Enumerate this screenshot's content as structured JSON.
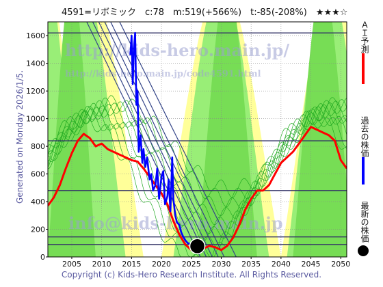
{
  "title": "4591=リボミック　c:78　m:519(+566%)　t:-85(-208%)　★★★☆",
  "side_label": "Generated on Monday 2026/1/5.",
  "copyright": "Copyright (c) Kids-Hero Research Institute. All Rights Reserved.",
  "watermarks": {
    "url": "http://kids-hero.main.jp/",
    "url2": "http://kids-hero.main.jp/code4591.html",
    "mail": "info@kids-hero.main.jp"
  },
  "legend": [
    {
      "label": "ＡＩ予測",
      "color": "#ff0000",
      "kind": "line"
    },
    {
      "label": "過去の株価",
      "color": "#0000ff",
      "kind": "line"
    },
    {
      "label": "最新の株価",
      "color": "#000000",
      "kind": "dot"
    }
  ],
  "chart_data": {
    "type": "line",
    "title": "4591=リボミック　c:78　m:519(+566%)　t:-85(-208%)　★★★☆",
    "xlim": [
      2001,
      2051
    ],
    "ylim": [
      0,
      1700
    ],
    "x_ticks": [
      2005,
      2010,
      2015,
      2020,
      2025,
      2030,
      2035,
      2040,
      2045,
      2050
    ],
    "y_ticks": [
      0,
      200,
      400,
      600,
      800,
      1000,
      1200,
      1400,
      1600
    ],
    "grid": true,
    "latest_price": {
      "x": 2026.0,
      "y": 78
    },
    "horizontal_lines": [
      1620,
      840,
      480,
      145,
      90
    ],
    "series": [
      {
        "name": "ＡＩ予測",
        "color": "#ff0000",
        "x": [
          2001,
          2002,
          2003,
          2004,
          2005,
          2006,
          2007,
          2008,
          2009,
          2010,
          2011,
          2012,
          2013,
          2014,
          2015,
          2016,
          2017,
          2018,
          2019,
          2020,
          2021,
          2022,
          2023,
          2024,
          2025,
          2026,
          2027,
          2028,
          2029,
          2030,
          2031,
          2032,
          2033,
          2034,
          2035,
          2036,
          2037,
          2038,
          2039,
          2040,
          2041,
          2042,
          2043,
          2044,
          2045,
          2046,
          2047,
          2048,
          2049,
          2050,
          2051
        ],
        "y": [
          370,
          430,
          520,
          640,
          750,
          840,
          890,
          860,
          800,
          820,
          780,
          760,
          740,
          720,
          700,
          690,
          640,
          580,
          520,
          460,
          380,
          260,
          160,
          90,
          50,
          40,
          60,
          80,
          70,
          50,
          80,
          140,
          230,
          340,
          420,
          480,
          480,
          520,
          600,
          680,
          720,
          760,
          820,
          880,
          940,
          920,
          900,
          880,
          840,
          700,
          640
        ]
      },
      {
        "name": "過去の株価",
        "color": "#0000ff",
        "x": [
          2014.8,
          2015.0,
          2015.2,
          2015.4,
          2015.6,
          2015.8,
          2016.0,
          2016.2,
          2016.5,
          2016.8,
          2017.0,
          2017.3,
          2017.6,
          2018.0,
          2018.3,
          2018.6,
          2019.0,
          2019.3,
          2019.6,
          2020.0,
          2020.3,
          2020.6,
          2021.0,
          2021.2,
          2021.5,
          2021.8,
          2022.0,
          2022.3,
          2022.6,
          2023.0,
          2023.3,
          2023.6,
          2024.0,
          2024.4,
          2024.8
        ],
        "y": [
          1460,
          1600,
          1250,
          1520,
          1620,
          1100,
          1200,
          760,
          880,
          680,
          780,
          650,
          720,
          560,
          600,
          480,
          520,
          640,
          420,
          580,
          620,
          380,
          440,
          560,
          330,
          720,
          420,
          300,
          250,
          230,
          180,
          150,
          120,
          100,
          95
        ]
      }
    ]
  }
}
